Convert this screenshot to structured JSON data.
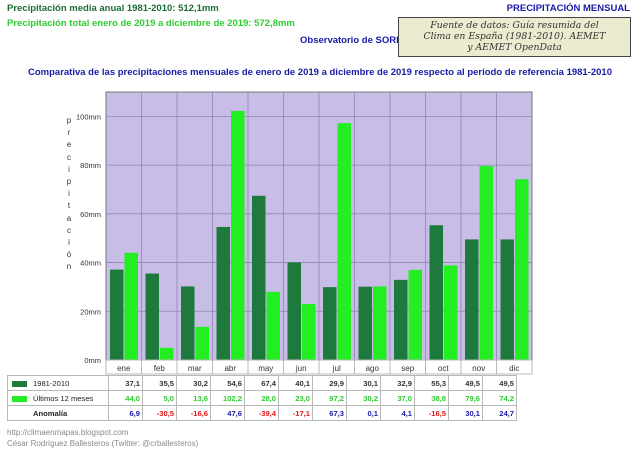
{
  "header": {
    "annual_mean": "Precipitación media anual 1981-2010: 512,1mm",
    "total": "Precipitación total enero de 2019 a diciembre de 2019: 572,8mm",
    "observatory": "Observatorio de SORIA",
    "page_title": "PRECIPITACIÓN MENSUAL",
    "source_lines": [
      "Fuente de datos: Guía resumida del",
      "Clima en España (1981-2010). AEMET",
      "y AEMET OpenData"
    ]
  },
  "chart_data": {
    "type": "bar",
    "title": "Comparativa de las precipitaciones mensuales de enero de 2019 a diciembre de 2019 respecto al periodo de referencia 1981-2010",
    "xlabel": "",
    "ylabel": "precipitación",
    "ylabel_letters": [
      "p",
      "r",
      "e",
      "c",
      "i",
      "p",
      "i",
      "t",
      "a",
      "c",
      "i",
      "ó",
      "n"
    ],
    "ylim": [
      0,
      110
    ],
    "yticks": [
      0,
      20,
      40,
      60,
      80,
      100
    ],
    "ytick_labels": [
      "0mm",
      "20mm",
      "40mm",
      "60mm",
      "80mm",
      "100mm"
    ],
    "categories": [
      "ene",
      "feb",
      "mar",
      "abr",
      "may",
      "jun",
      "jul",
      "ago",
      "sep",
      "oct",
      "nov",
      "dic"
    ],
    "series": [
      {
        "name": "1981-2010",
        "color": "#1e7a3c",
        "values": [
          37.1,
          35.5,
          30.2,
          54.6,
          67.4,
          40.1,
          29.9,
          30.1,
          32.9,
          55.3,
          49.5,
          49.5
        ]
      },
      {
        "name": "Últimos 12 meses",
        "color": "#22ee22",
        "values": [
          44.0,
          5.0,
          13.6,
          102.2,
          28.0,
          23.0,
          97.2,
          30.2,
          37.0,
          38.8,
          79.6,
          74.2
        ]
      }
    ],
    "background": "#c8bde6",
    "grid": true
  },
  "table": {
    "rows": [
      {
        "label": "1981-2010",
        "values": [
          "37,1",
          "35,5",
          "30,2",
          "54,6",
          "67,4",
          "40,1",
          "29,9",
          "30,1",
          "32,9",
          "55,3",
          "49,5",
          "49,5"
        ]
      },
      {
        "label": "Últimos 12 meses",
        "values": [
          "44,0",
          "5,0",
          "13,6",
          "102,2",
          "28,0",
          "23,0",
          "97,2",
          "30,2",
          "37,0",
          "38,8",
          "79,6",
          "74,2"
        ]
      },
      {
        "label": "Anomalía",
        "values": [
          "6,9",
          "-30,5",
          "-16,6",
          "47,6",
          "-39,4",
          "-17,1",
          "67,3",
          "0,1",
          "4,1",
          "-16,5",
          "30,1",
          "24,7"
        ]
      }
    ]
  },
  "footer": {
    "url": "http://climaenmapas.blogspot.com",
    "author": "César Rodríguez Ballesteros (Twitter: @crballesteros)"
  }
}
